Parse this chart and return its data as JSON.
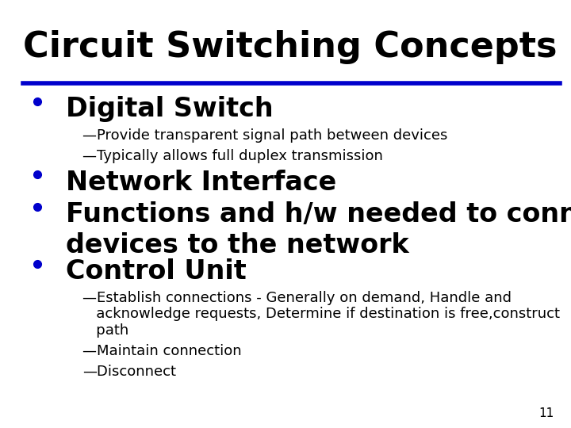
{
  "title": "Circuit Switching Concepts",
  "title_fontsize": 32,
  "title_color": "#000000",
  "line_color": "#0000CC",
  "background_color": "#FFFFFF",
  "page_number": "11",
  "bullet_color": "#0000CC",
  "bullet_items": [
    {
      "text": "Digital Switch",
      "level": 0,
      "fontsize": 24,
      "bold": true,
      "color": "#000000"
    },
    {
      "text": "—Provide transparent signal path between devices",
      "level": 1,
      "fontsize": 13,
      "bold": false,
      "color": "#000000"
    },
    {
      "text": "—Typically allows full duplex transmission",
      "level": 1,
      "fontsize": 13,
      "bold": false,
      "color": "#000000"
    },
    {
      "text": "Network Interface",
      "level": 0,
      "fontsize": 24,
      "bold": true,
      "color": "#000000"
    },
    {
      "text": "Functions and h/w needed to connect digital\ndevices to the network",
      "level": 0,
      "fontsize": 24,
      "bold": true,
      "color": "#000000"
    },
    {
      "text": "Control Unit",
      "level": 0,
      "fontsize": 24,
      "bold": true,
      "color": "#000000"
    },
    {
      "text": "—Establish connections - Generally on demand, Handle and\n   acknowledge requests, Determine if destination is free,construct\n   path",
      "level": 1,
      "fontsize": 13,
      "bold": false,
      "color": "#000000"
    },
    {
      "text": "—Maintain connection",
      "level": 1,
      "fontsize": 13,
      "bold": false,
      "color": "#000000"
    },
    {
      "text": "—Disconnect",
      "level": 1,
      "fontsize": 13,
      "bold": false,
      "color": "#000000"
    }
  ]
}
